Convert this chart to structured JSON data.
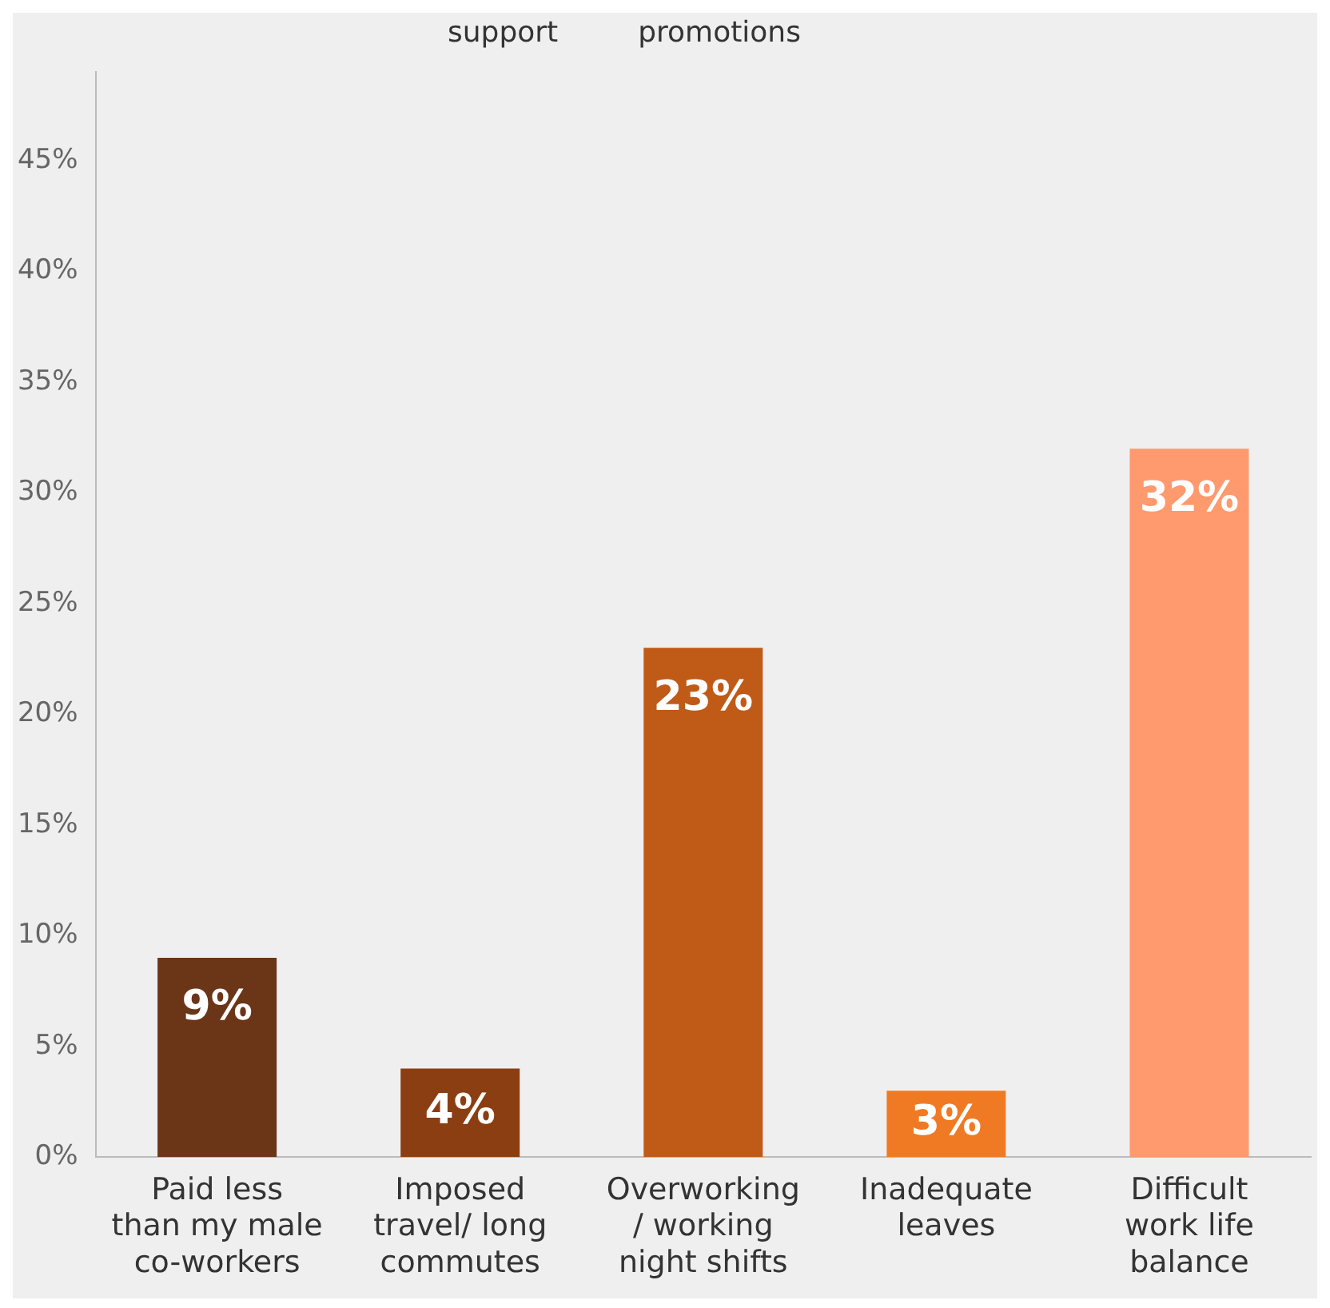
{
  "chart_data": {
    "type": "bar",
    "categories": [
      "Paid less than my male co-workers",
      "Imposed travel/ long commutes",
      "Overworking / working night shifts",
      "Inadequate leaves",
      "Difficult work life balance"
    ],
    "values": [
      9,
      4,
      23,
      3,
      32
    ],
    "value_labels": [
      "9%",
      "4%",
      "23%",
      "3%",
      "32%"
    ],
    "colors": [
      "#6b3518",
      "#8b3e12",
      "#c05a17",
      "#f07a24",
      "#ff9a6e"
    ],
    "ylim": [
      0,
      49
    ],
    "yticks": [
      {
        "value": 0,
        "label": "0%"
      },
      {
        "value": 5,
        "label": "5%"
      },
      {
        "value": 10,
        "label": "10%"
      },
      {
        "value": 15,
        "label": "15%"
      },
      {
        "value": 20,
        "label": "20%"
      },
      {
        "value": 25,
        "label": "25%"
      },
      {
        "value": 30,
        "label": "30%"
      },
      {
        "value": 35,
        "label": "35%"
      },
      {
        "value": 40,
        "label": "40%"
      },
      {
        "value": 45,
        "label": "45%"
      }
    ],
    "grid": false,
    "legend": false,
    "annotations": [
      "support",
      "promotions"
    ]
  }
}
